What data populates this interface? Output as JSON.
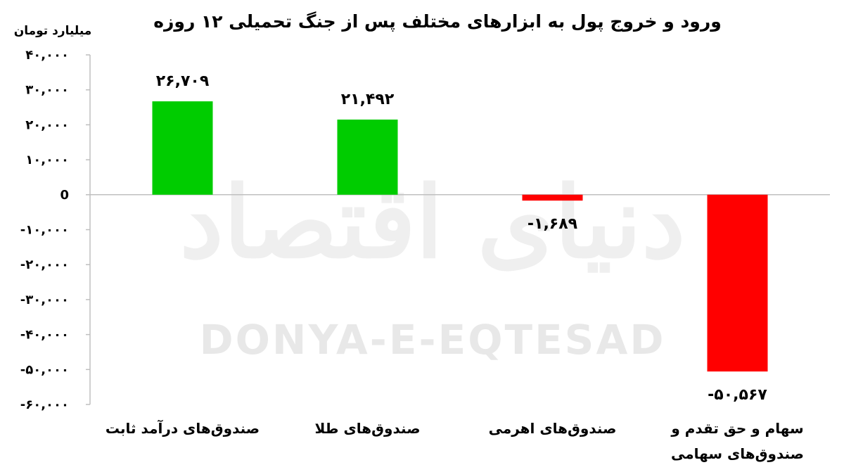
{
  "chart_data": {
    "type": "bar",
    "title": "ورود و خروج پول به ابزارهای مختلف پس از جنگ تحمیلی ۱۲ روزه",
    "ylabel": "میلیارد تومان",
    "xlabel": "",
    "ylim": [
      -60000,
      40000
    ],
    "ytick_values": [
      40000,
      30000,
      20000,
      10000,
      0,
      -10000,
      -20000,
      -30000,
      -40000,
      -50000,
      -60000
    ],
    "ytick_labels": [
      "۴۰,۰۰۰",
      "۳۰,۰۰۰",
      "۲۰,۰۰۰",
      "۱۰,۰۰۰",
      "0",
      "-۱۰,۰۰۰",
      "-۲۰,۰۰۰",
      "-۳۰,۰۰۰",
      "-۴۰,۰۰۰",
      "-۵۰,۰۰۰",
      "-۶۰,۰۰۰"
    ],
    "categories": [
      [
        "صندوق‌های درآمد ثابت"
      ],
      [
        "صندوق‌های طلا"
      ],
      [
        "صندوق‌های اهرمی"
      ],
      [
        "سهام و حق تقدم و",
        "صندوق‌های سهامی"
      ]
    ],
    "values": [
      26709,
      21492,
      -1689,
      -50567
    ],
    "data_labels": [
      "۲۶,۷۰۹",
      "۲۱,۴۹۲",
      "-۱,۶۸۹",
      "-۵۰,۵۶۷"
    ],
    "grid": false,
    "legend": "none",
    "colors": {
      "positive": "#00CC00",
      "negative": "#FF0000",
      "axis": "#BFBFBF"
    }
  },
  "watermark": {
    "latin": "DONYA-E-EQTESAD",
    "arabic": "دنیای اقتصاد"
  }
}
